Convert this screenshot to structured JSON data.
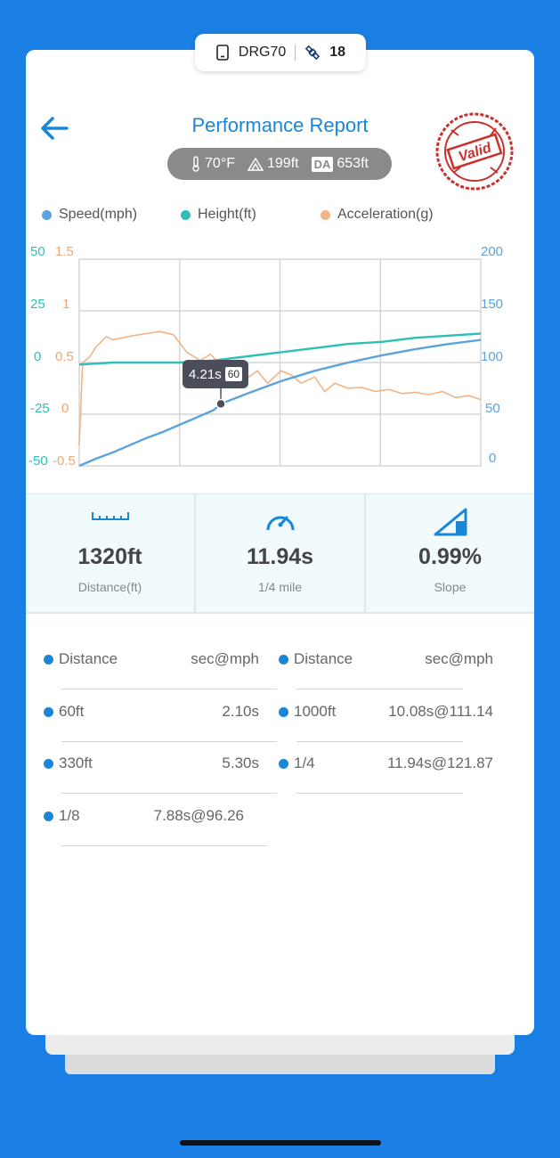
{
  "device": {
    "name": "DRG70",
    "satellites": "18"
  },
  "header": {
    "title": "Performance Report",
    "stamp_text": "Valid"
  },
  "conditions": {
    "temperature": "70°F",
    "altitude": "199ft",
    "da_label": "DA",
    "density_altitude": "653ft"
  },
  "colors": {
    "speed": "#5ba3dc",
    "height": "#2fbfb8",
    "acceleration": "#f2b486",
    "accent": "#1a86d6"
  },
  "legend": {
    "speed": "Speed(mph)",
    "height": "Height(ft)",
    "acceleration": "Acceleration(g)"
  },
  "chart_data": {
    "type": "line",
    "x_axis": {
      "min": 0,
      "max": 11.94
    },
    "left_axis_height": {
      "ticks": [
        "50",
        "25",
        "0",
        "-25",
        "-50"
      ],
      "range": [
        -50,
        50
      ]
    },
    "left_axis_accel": {
      "ticks": [
        "1.5",
        "1",
        "0.5",
        "0",
        "-0.5"
      ],
      "range": [
        -0.5,
        1.5
      ]
    },
    "right_axis_speed": {
      "ticks": [
        "200",
        "150",
        "100",
        "50",
        "0"
      ],
      "range": [
        0,
        200
      ]
    },
    "series": [
      {
        "name": "Speed(mph)",
        "axis": "speed",
        "x": [
          0,
          0.5,
          1,
          1.5,
          2,
          2.5,
          3,
          3.5,
          4,
          4.21,
          5,
          6,
          7,
          8,
          9,
          10,
          11,
          11.94
        ],
        "y": [
          0,
          7,
          13,
          20,
          27,
          33,
          40,
          47,
          54,
          60,
          70,
          82,
          92,
          100,
          107,
          113,
          118,
          121.87
        ]
      },
      {
        "name": "Height(ft)",
        "axis": "height",
        "x": [
          0,
          1,
          2,
          3,
          4,
          5,
          6,
          7,
          8,
          9,
          10,
          11,
          11.94
        ],
        "y": [
          -1,
          0,
          0,
          0,
          1,
          3,
          5,
          7,
          9,
          10,
          12,
          13,
          14
        ]
      },
      {
        "name": "Acceleration(g)",
        "axis": "accel",
        "x": [
          0,
          0.1,
          0.3,
          0.5,
          0.8,
          1.0,
          1.3,
          1.6,
          2.0,
          2.4,
          2.8,
          3.2,
          3.6,
          3.9,
          4.2,
          4.6,
          5.0,
          5.3,
          5.6,
          6.0,
          6.3,
          6.6,
          7.0,
          7.3,
          7.6,
          8.0,
          8.4,
          8.8,
          9.2,
          9.6,
          10.0,
          10.4,
          10.8,
          11.2,
          11.6,
          11.94
        ],
        "y": [
          -0.3,
          0.5,
          0.55,
          0.65,
          0.75,
          0.72,
          0.74,
          0.76,
          0.78,
          0.8,
          0.77,
          0.6,
          0.52,
          0.58,
          0.48,
          0.5,
          0.35,
          0.42,
          0.3,
          0.42,
          0.38,
          0.3,
          0.36,
          0.22,
          0.3,
          0.25,
          0.26,
          0.22,
          0.24,
          0.2,
          0.21,
          0.19,
          0.22,
          0.16,
          0.18,
          0.14
        ]
      }
    ],
    "tooltip": {
      "time": "4.21s",
      "value": "60"
    }
  },
  "stats": [
    {
      "icon": "ruler-icon",
      "value": "1320ft",
      "label": "Distance(ft)"
    },
    {
      "icon": "speedometer-icon",
      "value": "11.94s",
      "label": "1/4 mile"
    },
    {
      "icon": "slope-icon",
      "value": "0.99%",
      "label": "Slope"
    }
  ],
  "splits": {
    "left": [
      {
        "label": "Distance",
        "value": "sec@mph"
      },
      {
        "label": "60ft",
        "value": "2.10s"
      },
      {
        "label": "330ft",
        "value": "5.30s"
      },
      {
        "label": "1/8",
        "value": "7.88s@96.26"
      }
    ],
    "right": [
      {
        "label": "Distance",
        "value": "sec@mph"
      },
      {
        "label": "1000ft",
        "value": "10.08s@111.14"
      },
      {
        "label": "1/4",
        "value": "11.94s@121.87"
      }
    ]
  }
}
